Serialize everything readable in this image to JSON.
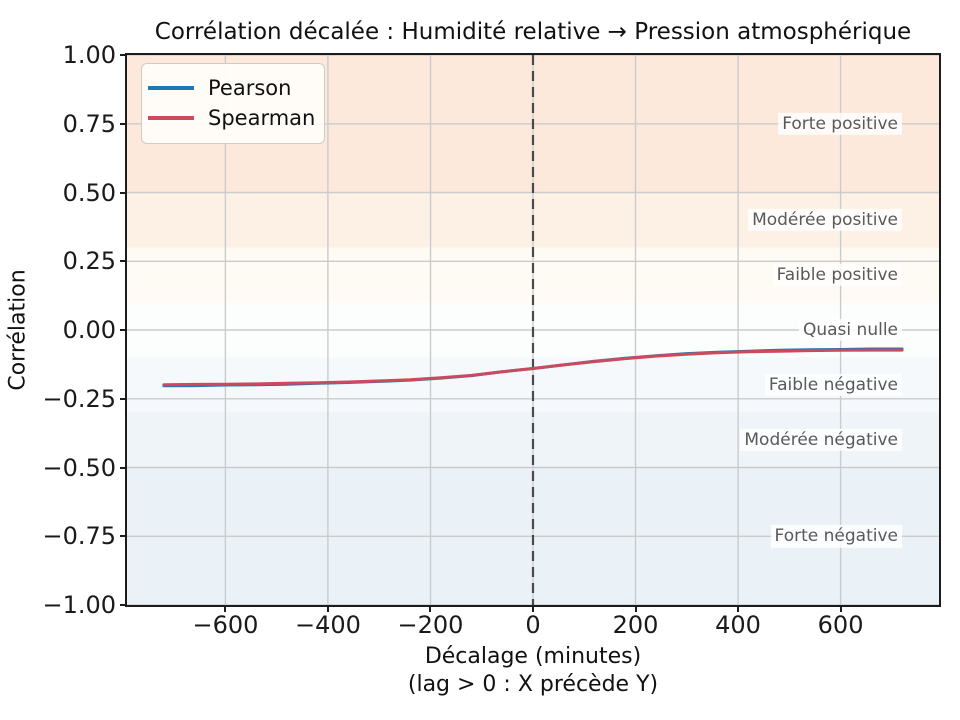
{
  "chart_data": {
    "type": "line",
    "title": "Corrélation décalée : Humidité relative → Pression atmosphérique",
    "xlabel": "Décalage (minutes)",
    "xlabel_sub": "(lag > 0 : X précède Y)",
    "ylabel": "Corrélation",
    "xlim": [
      -792,
      792
    ],
    "ylim": [
      -1.0,
      1.0
    ],
    "xticks": [
      -600,
      -400,
      -200,
      0,
      200,
      400,
      600
    ],
    "yticks": [
      1.0,
      0.75,
      0.5,
      0.25,
      0.0,
      -0.25,
      -0.5,
      -0.75,
      -1.0
    ],
    "grid": true,
    "legend_position": "upper-left",
    "zero_lag_line": {
      "x": 0,
      "style": "dashed",
      "color": "#4a4a4a"
    },
    "x": [
      -720,
      -660,
      -600,
      -540,
      -480,
      -420,
      -360,
      -300,
      -240,
      -180,
      -120,
      -60,
      0,
      60,
      120,
      180,
      240,
      300,
      360,
      420,
      480,
      540,
      600,
      660,
      720
    ],
    "series": [
      {
        "name": "Pearson",
        "color": "#1f77b4",
        "values": [
          -0.203,
          -0.202,
          -0.2,
          -0.199,
          -0.197,
          -0.194,
          -0.191,
          -0.187,
          -0.182,
          -0.175,
          -0.166,
          -0.152,
          -0.14,
          -0.127,
          -0.114,
          -0.103,
          -0.094,
          -0.086,
          -0.081,
          -0.077,
          -0.074,
          -0.072,
          -0.071,
          -0.069,
          -0.069
        ]
      },
      {
        "name": "Spearman",
        "color": "#cd4a5e",
        "values": [
          -0.199,
          -0.198,
          -0.197,
          -0.196,
          -0.194,
          -0.192,
          -0.189,
          -0.185,
          -0.181,
          -0.174,
          -0.165,
          -0.152,
          -0.14,
          -0.127,
          -0.115,
          -0.104,
          -0.095,
          -0.088,
          -0.083,
          -0.079,
          -0.077,
          -0.075,
          -0.074,
          -0.073,
          -0.073
        ]
      }
    ],
    "bands": [
      {
        "label": "Forte positive",
        "from": 0.5,
        "to": 1.0,
        "color": "#fce9db",
        "label_at": 0.75
      },
      {
        "label": "Modérée positive",
        "from": 0.3,
        "to": 0.5,
        "color": "#fdf1e5",
        "label_at": 0.4
      },
      {
        "label": "Faible positive",
        "from": 0.1,
        "to": 0.3,
        "color": "#fefaf4",
        "label_at": 0.2
      },
      {
        "label": "Quasi nulle",
        "from": -0.1,
        "to": 0.1,
        "color": "#fcfdfd",
        "label_at": 0.0
      },
      {
        "label": "Faible négative",
        "from": -0.3,
        "to": -0.1,
        "color": "#f5f9fb",
        "label_at": -0.2
      },
      {
        "label": "Modérée négative",
        "from": -0.5,
        "to": -0.3,
        "color": "#eff4f8",
        "label_at": -0.4
      },
      {
        "label": "Forte négative",
        "from": -1.0,
        "to": -0.5,
        "color": "#eaf1f7",
        "label_at": -0.75
      }
    ]
  }
}
